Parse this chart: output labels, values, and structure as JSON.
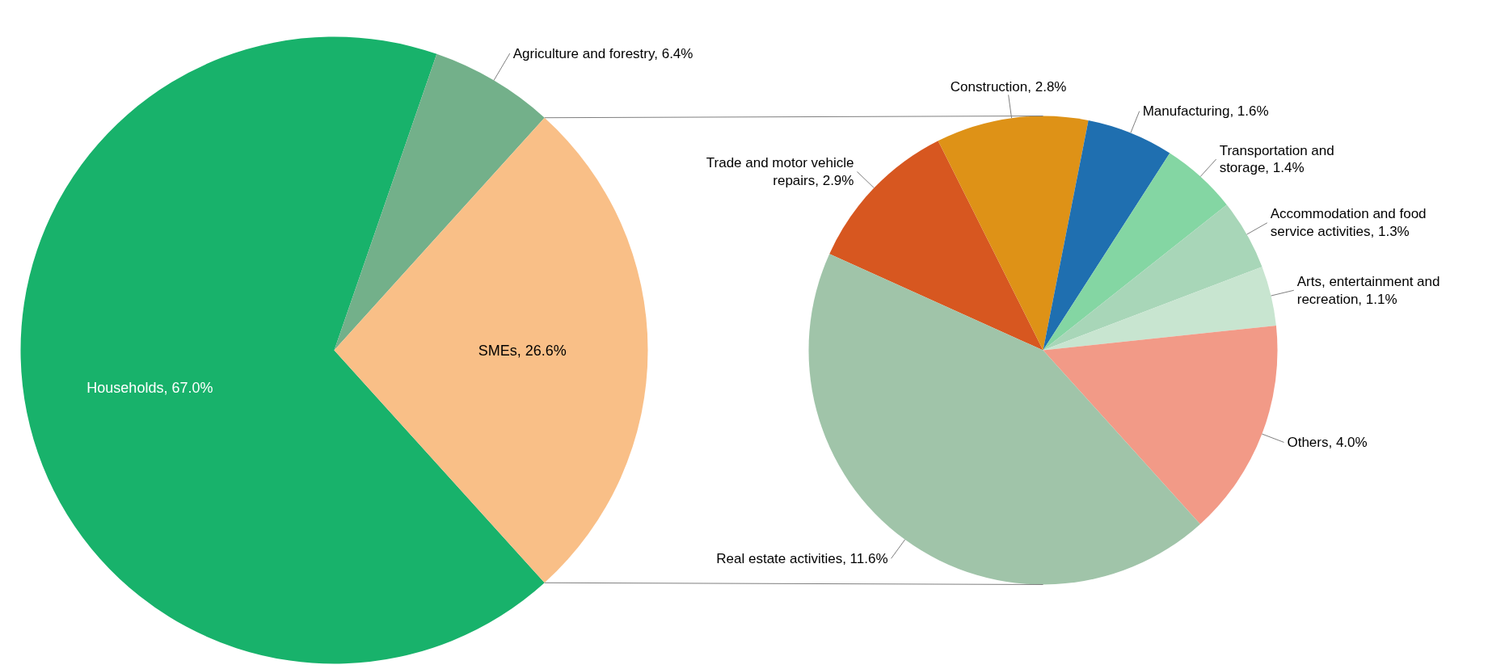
{
  "chart_data": [
    {
      "type": "pie",
      "categories": [
        "Households",
        "Agriculture and forestry",
        "SMEs"
      ],
      "values": [
        67.0,
        6.4,
        26.6
      ],
      "value_labels": [
        "67.0%",
        "6.4%",
        "26.6%"
      ],
      "colors": [
        "#18b26b",
        "#73b08a",
        "#f9bf87"
      ]
    },
    {
      "type": "pie",
      "categories": [
        "Trade and motor vehicle repairs",
        "Construction",
        "Manufacturing",
        "Transportation and storage",
        "Accommodation and food service activities",
        "Arts, entertainment and recreation",
        "Others",
        "Real estate activities"
      ],
      "values": [
        2.9,
        2.8,
        1.6,
        1.4,
        1.3,
        1.1,
        4.0,
        11.6
      ],
      "value_labels": [
        "2.9%",
        "2.8%",
        "1.6%",
        "1.4%",
        "1.3%",
        "1.1%",
        "4.0%",
        "11.6%"
      ],
      "colors": [
        "#d75720",
        "#de9217",
        "#1f6fb0",
        "#84d6a3",
        "#a8d6b8",
        "#c8e5d0",
        "#f29a87",
        "#a0c4a9"
      ]
    }
  ]
}
